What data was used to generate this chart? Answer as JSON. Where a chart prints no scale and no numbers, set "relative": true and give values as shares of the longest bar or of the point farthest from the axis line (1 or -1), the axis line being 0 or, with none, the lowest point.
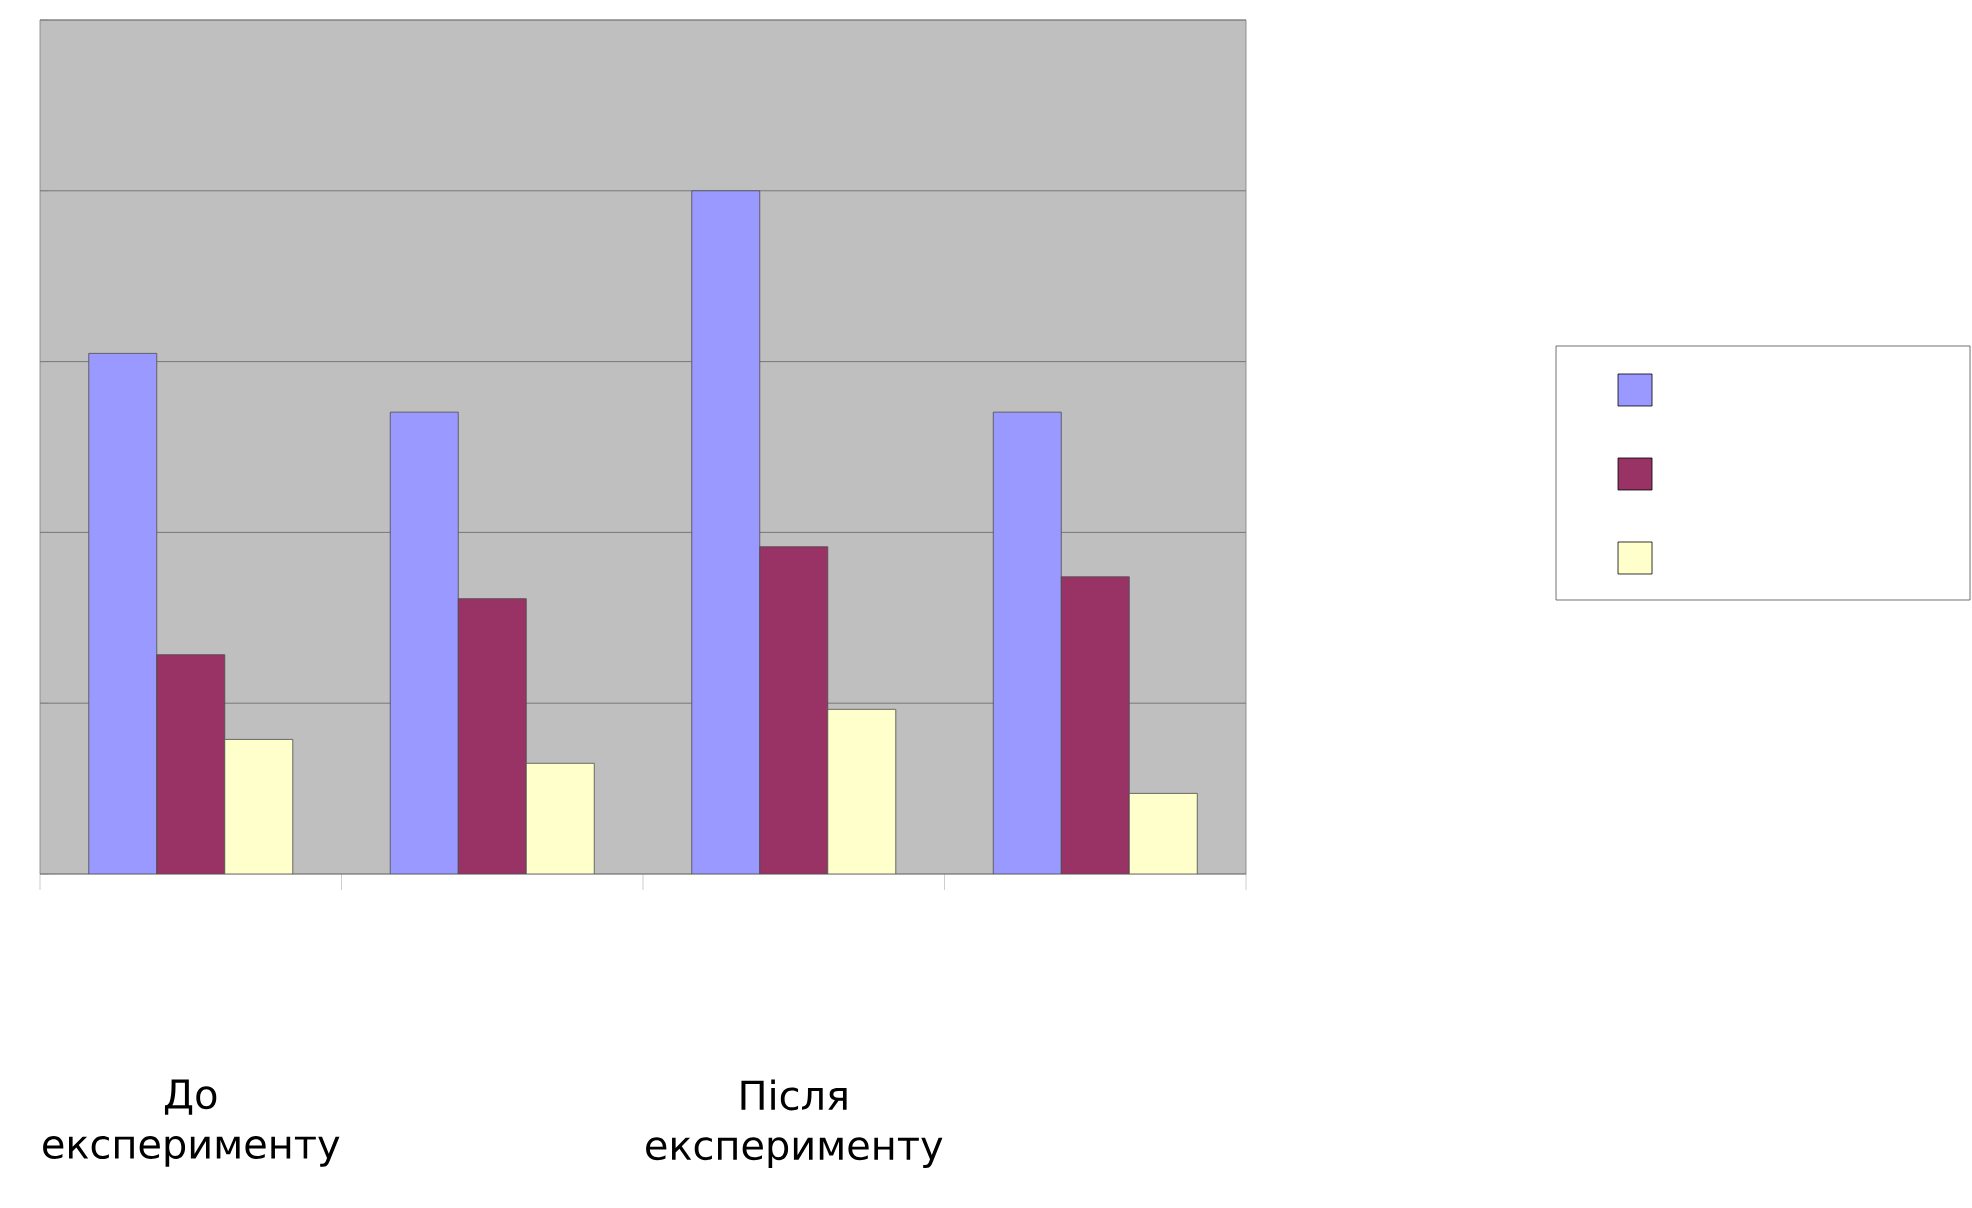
{
  "chart_data": {
    "type": "bar",
    "relative": true,
    "grid": true,
    "categories": [
      "До експерименту",
      null,
      "Після експерименту",
      null
    ],
    "series": [
      {
        "color": "#9999ff",
        "values": [
          0.762,
          0.676,
          1,
          0.676
        ]
      },
      {
        "color": "#993366",
        "values": [
          0.321,
          0.403,
          0.479,
          0.435
        ]
      },
      {
        "color": "#ffffcc",
        "values": [
          0.197,
          0.162,
          0.241,
          0.118
        ]
      }
    ]
  }
}
